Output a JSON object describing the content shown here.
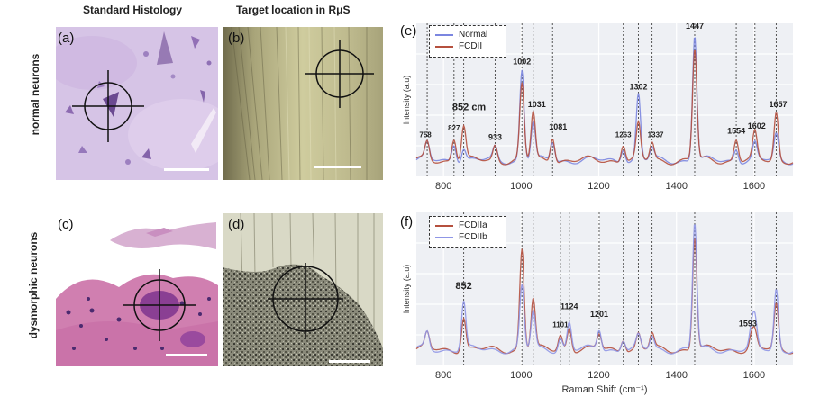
{
  "columns": {
    "histology": "Standard Histology",
    "target": "Target location in RμS"
  },
  "rows": {
    "normal": "normal neurons",
    "dysmorphic": "dysmorphic neurons"
  },
  "panel_labels": {
    "a": "(a)",
    "b": "(b)",
    "c": "(c)",
    "d": "(d)",
    "e": "(e)",
    "f": "(f)"
  },
  "colors": {
    "normal": "#7b86e0",
    "fcdii": "#b5503e",
    "fcdiia": "#b5503e",
    "fcdiib": "#8f96e6",
    "plot_bg": "#eef0f4",
    "grid": "#ffffff",
    "he_pink": "#d9b7dc",
    "he_purple": "#7a3f8e"
  },
  "chart_data": [
    {
      "type": "line",
      "panel": "e",
      "xlabel": "",
      "ylabel": "Intensity (a.u)",
      "xlim": [
        730,
        1700
      ],
      "xticks": [
        800,
        1000,
        1200,
        1400,
        1600
      ],
      "grid": true,
      "legend_position": "top-left",
      "series": [
        {
          "name": "Normal",
          "color": "#7b86e0",
          "peaks": [
            [
              758,
              0.13
            ],
            [
              827,
              0.14
            ],
            [
              852,
              0.1
            ],
            [
              933,
              0.1
            ],
            [
              1002,
              0.72
            ],
            [
              1031,
              0.3
            ],
            [
              1081,
              0.15
            ],
            [
              1263,
              0.11
            ],
            [
              1302,
              0.52
            ],
            [
              1337,
              0.09
            ],
            [
              1447,
              1.0
            ],
            [
              1554,
              0.1
            ],
            [
              1602,
              0.13
            ],
            [
              1657,
              0.2
            ]
          ]
        },
        {
          "name": "FCDII",
          "color": "#b5503e",
          "peaks": [
            [
              758,
              0.14
            ],
            [
              827,
              0.18
            ],
            [
              852,
              0.27
            ],
            [
              933,
              0.12
            ],
            [
              1002,
              0.6
            ],
            [
              1031,
              0.38
            ],
            [
              1081,
              0.2
            ],
            [
              1263,
              0.14
            ],
            [
              1302,
              0.28
            ],
            [
              1337,
              0.14
            ],
            [
              1447,
              0.88
            ],
            [
              1554,
              0.17
            ],
            [
              1602,
              0.21
            ],
            [
              1657,
              0.38
            ]
          ]
        }
      ],
      "peak_labels": [
        {
          "x": 758,
          "label": "758"
        },
        {
          "x": 827,
          "label": "827"
        },
        {
          "x": 852,
          "label": "852 cm"
        },
        {
          "x": 933,
          "label": "933"
        },
        {
          "x": 1002,
          "label": "1002"
        },
        {
          "x": 1031,
          "label": "1031"
        },
        {
          "x": 1081,
          "label": "1081"
        },
        {
          "x": 1263,
          "label": "1263"
        },
        {
          "x": 1302,
          "label": "1302"
        },
        {
          "x": 1337,
          "label": "1337"
        },
        {
          "x": 1447,
          "label": "1447"
        },
        {
          "x": 1554,
          "label": "1554"
        },
        {
          "x": 1602,
          "label": "1602"
        },
        {
          "x": 1657,
          "label": "1657"
        }
      ]
    },
    {
      "type": "line",
      "panel": "f",
      "xlabel": "Raman Shift (cm⁻¹)",
      "ylabel": "Intensity (a.u)",
      "xlim": [
        730,
        1700
      ],
      "xticks": [
        800,
        1000,
        1200,
        1400,
        1600
      ],
      "grid": true,
      "legend_position": "top-left",
      "series": [
        {
          "name": "FCDIIa",
          "color": "#b5503e",
          "peaks": [
            [
              758,
              0.12
            ],
            [
              852,
              0.26
            ],
            [
              1002,
              0.8
            ],
            [
              1031,
              0.4
            ],
            [
              1101,
              0.12
            ],
            [
              1124,
              0.18
            ],
            [
              1201,
              0.12
            ],
            [
              1263,
              0.1
            ],
            [
              1302,
              0.12
            ],
            [
              1337,
              0.12
            ],
            [
              1447,
              0.9
            ],
            [
              1593,
              0.1
            ],
            [
              1602,
              0.12
            ],
            [
              1657,
              0.35
            ]
          ]
        },
        {
          "name": "FCDIIb",
          "color": "#8f96e6",
          "peaks": [
            [
              758,
              0.13
            ],
            [
              852,
              0.38
            ],
            [
              1002,
              0.5
            ],
            [
              1031,
              0.3
            ],
            [
              1101,
              0.1
            ],
            [
              1124,
              0.22
            ],
            [
              1201,
              0.16
            ],
            [
              1263,
              0.09
            ],
            [
              1302,
              0.1
            ],
            [
              1337,
              0.1
            ],
            [
              1447,
              1.0
            ],
            [
              1593,
              0.14
            ],
            [
              1602,
              0.22
            ],
            [
              1657,
              0.48
            ]
          ]
        }
      ],
      "peak_labels": [
        {
          "x": 852,
          "label": "852"
        },
        {
          "x": 1101,
          "label": "1101"
        },
        {
          "x": 1124,
          "label": "1124"
        },
        {
          "x": 1201,
          "label": "1201"
        },
        {
          "x": 1593,
          "label": "1593"
        }
      ]
    }
  ]
}
